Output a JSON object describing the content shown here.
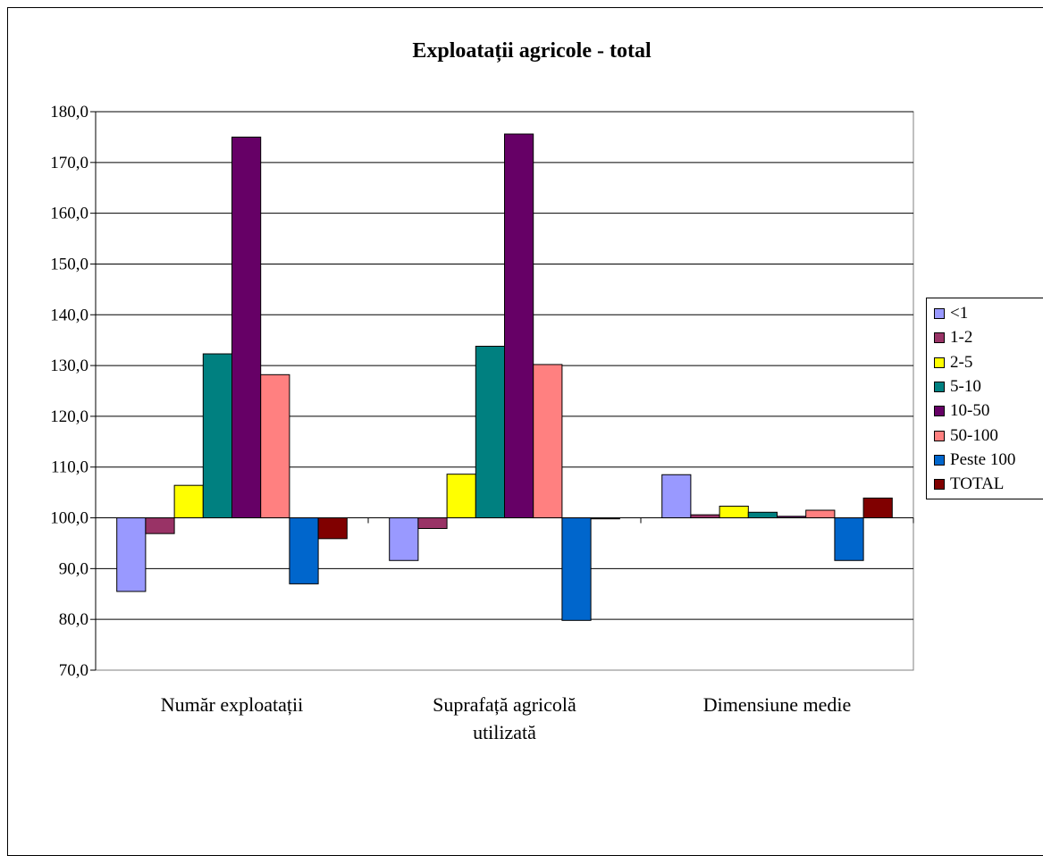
{
  "chart_data": {
    "type": "bar",
    "title": "Exploatații agricole - total",
    "categories": [
      [
        "Număr exploatații"
      ],
      [
        "Suprafață agricolă",
        "utilizată"
      ],
      [
        "Dimensiune medie"
      ]
    ],
    "ylim": [
      70,
      180
    ],
    "yticks": [
      "70,0",
      "80,0",
      "90,0",
      "100,0",
      "110,0",
      "120,0",
      "130,0",
      "140,0",
      "150,0",
      "160,0",
      "170,0",
      "180,0"
    ],
    "baseline": 100,
    "grid": true,
    "legend_position": "right",
    "series": [
      {
        "name": "<1",
        "color": "#9999ff",
        "values": [
          85.5,
          91.6,
          108.5
        ]
      },
      {
        "name": "1-2",
        "color": "#993366",
        "values": [
          96.9,
          97.9,
          100.6
        ]
      },
      {
        "name": "2-5",
        "color": "#ffff00",
        "values": [
          106.4,
          108.6,
          102.3
        ]
      },
      {
        "name": "5-10",
        "color": "#008080",
        "values": [
          132.3,
          133.8,
          101.1
        ]
      },
      {
        "name": "10-50",
        "color": "#660066",
        "values": [
          175.0,
          175.6,
          100.3
        ]
      },
      {
        "name": "50-100",
        "color": "#ff8080",
        "values": [
          128.2,
          130.2,
          101.5
        ]
      },
      {
        "name": "Peste 100",
        "color": "#0066cc",
        "values": [
          87.0,
          79.8,
          91.6
        ]
      },
      {
        "name": "TOTAL",
        "color": "#800000",
        "values": [
          95.9,
          99.8,
          103.9
        ]
      }
    ]
  }
}
